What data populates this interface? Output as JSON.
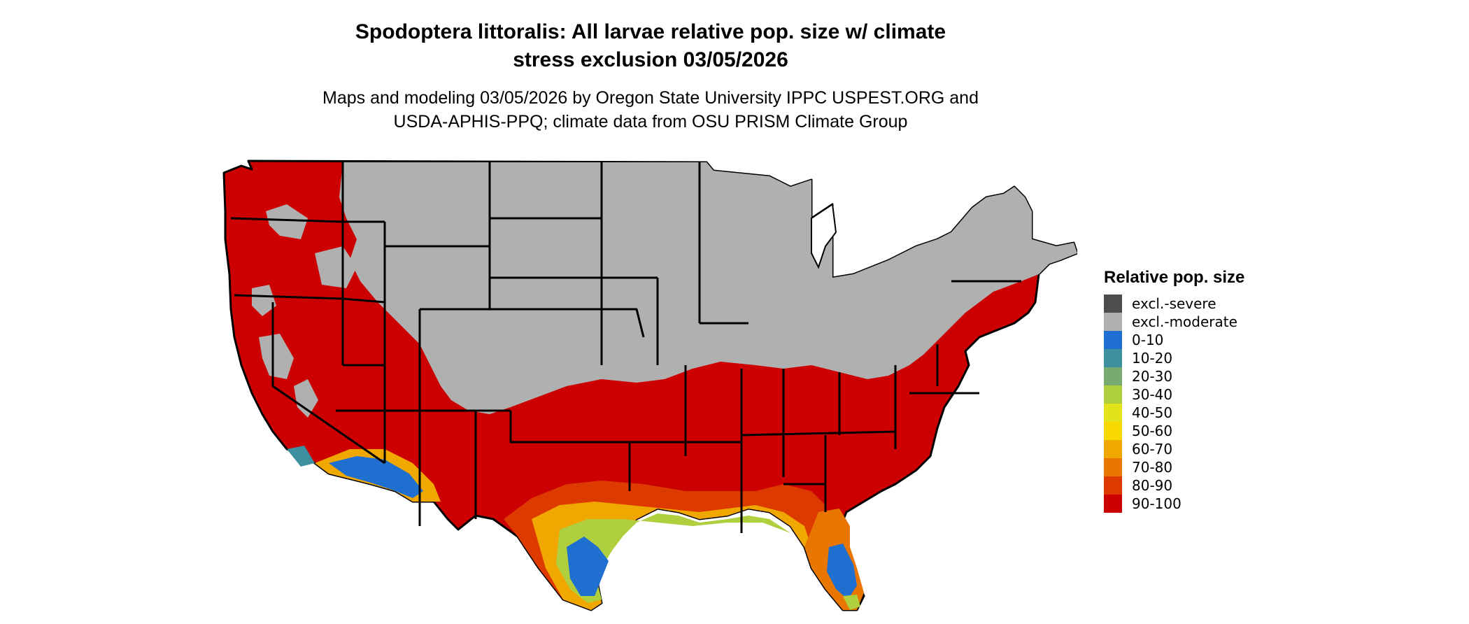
{
  "title_line1": "Spodoptera littoralis: All larvae relative pop. size w/ climate",
  "title_line2": "stress exclusion 03/05/2026",
  "subtitle_line1": "Maps and modeling 03/05/2026 by Oregon State University IPPC USPEST.ORG and",
  "subtitle_line2": "USDA-APHIS-PPQ; climate data from OSU PRISM Climate Group",
  "legend": {
    "title": "Relative pop. size",
    "items": [
      {
        "label": "excl.-severe",
        "color": "#4d4d4d"
      },
      {
        "label": "excl.-moderate",
        "color": "#b0b0b0"
      },
      {
        "label": "0-10",
        "color": "#1f6fd0"
      },
      {
        "label": "10-20",
        "color": "#3e8f9f"
      },
      {
        "label": "20-30",
        "color": "#78ab6f"
      },
      {
        "label": "30-40",
        "color": "#b0cf3f"
      },
      {
        "label": "40-50",
        "color": "#e3e31c"
      },
      {
        "label": "50-60",
        "color": "#f7d800"
      },
      {
        "label": "60-70",
        "color": "#f0a800"
      },
      {
        "label": "70-80",
        "color": "#e87600"
      },
      {
        "label": "80-90",
        "color": "#dd3a00"
      },
      {
        "label": "90-100",
        "color": "#cc0000"
      }
    ]
  }
}
